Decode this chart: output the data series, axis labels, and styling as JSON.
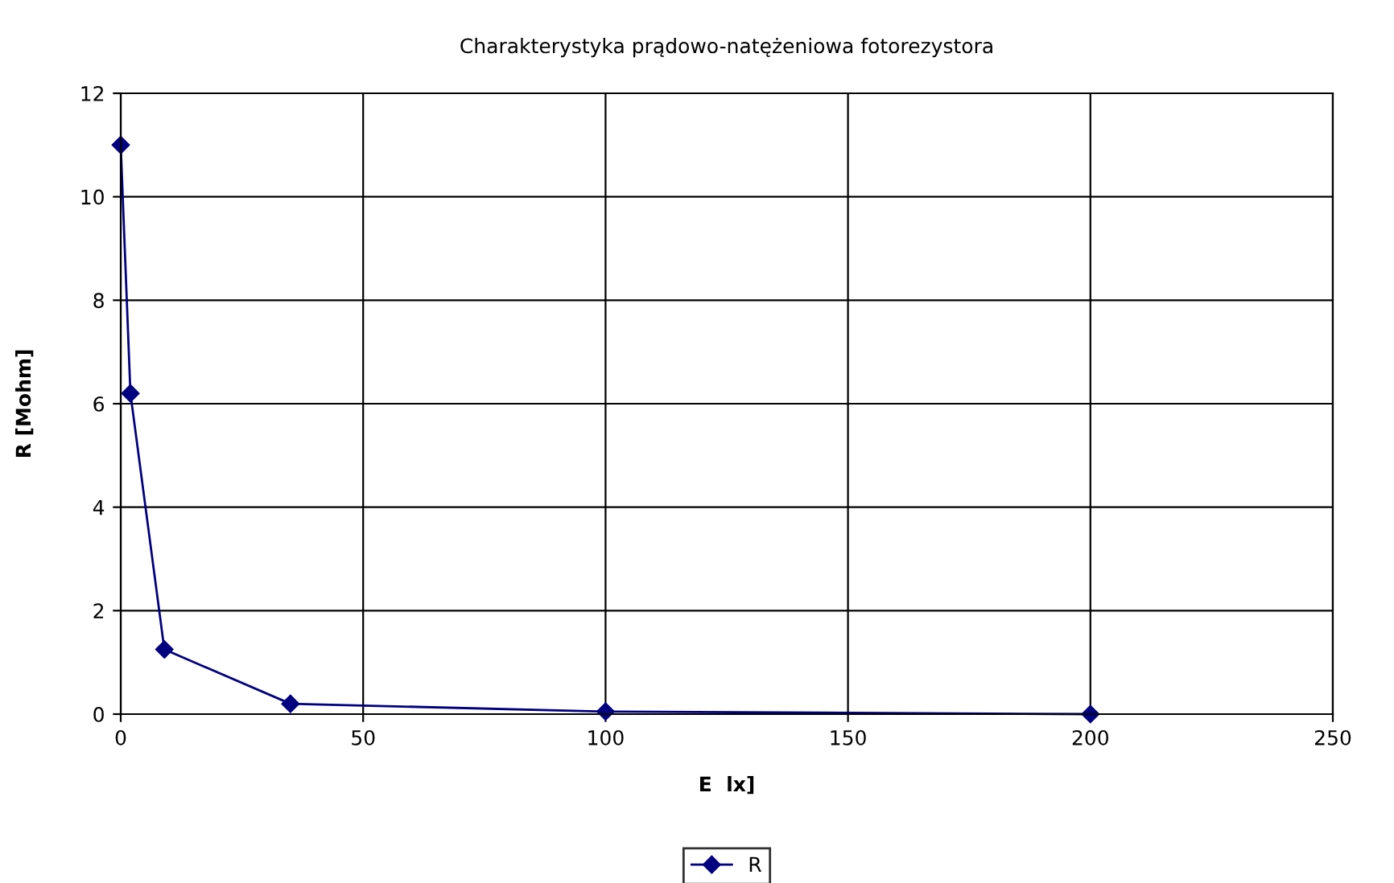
{
  "chart_data": {
    "type": "line",
    "title": "Charakterystyka prądowo-natężeniowa fotorezystora",
    "xlabel": "E  lx]",
    "ylabel": "R [Mohm]",
    "series": [
      {
        "name": "R",
        "color": "#000080",
        "x": [
          0,
          2,
          9,
          35,
          100,
          200
        ],
        "values": [
          11,
          6.2,
          1.25,
          0.2,
          0.05,
          0
        ]
      }
    ],
    "xlim": [
      0,
      250
    ],
    "xticks": [
      0,
      50,
      100,
      150,
      200,
      250
    ],
    "ylim": [
      0,
      12
    ],
    "yticks": [
      0,
      2,
      4,
      6,
      8,
      10,
      12
    ],
    "grid": true,
    "legend": "bottom",
    "marker": "diamond",
    "line_style": "solid"
  }
}
